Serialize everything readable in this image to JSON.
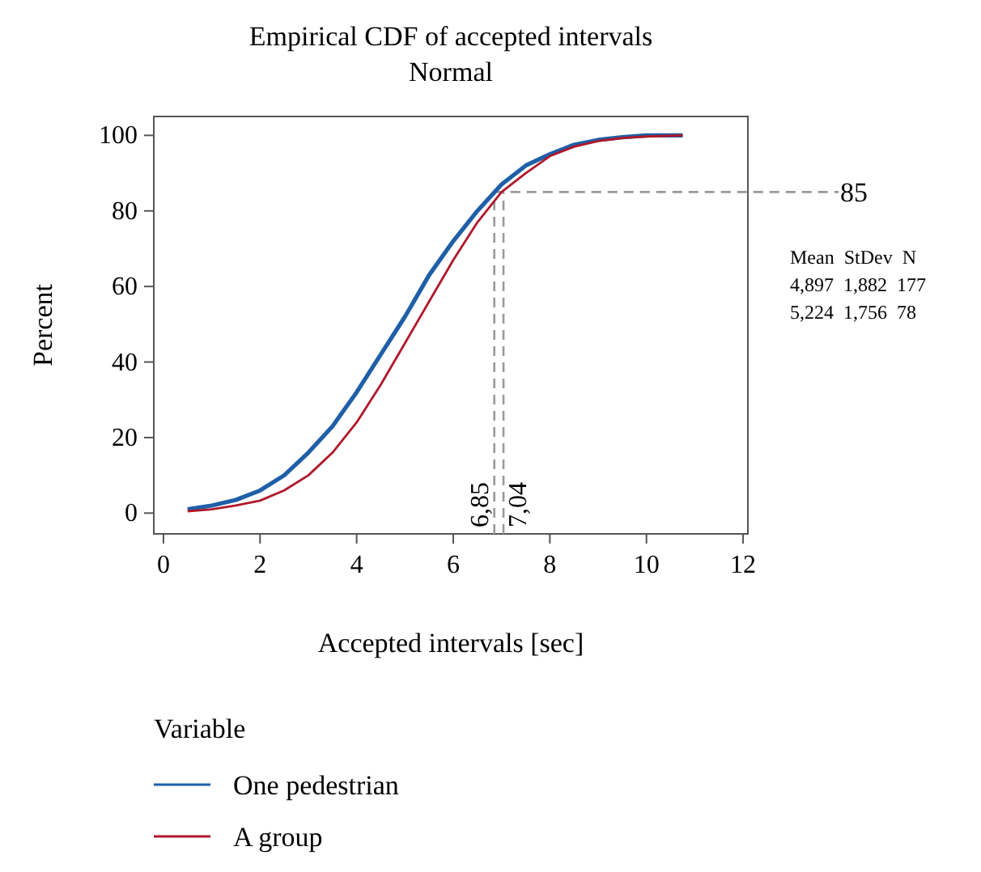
{
  "chart_data": {
    "type": "line",
    "title": "Empirical CDF of accepted intervals",
    "subtitle": "Normal",
    "xlabel": "Accepted intervals [sec]",
    "ylabel": "Percent",
    "legend_title": "Variable",
    "legend": "bottom",
    "grid": false,
    "line_style": "solid",
    "marker": "none",
    "x": [
      0.5,
      1,
      1.5,
      2,
      2.5,
      3,
      3.5,
      4,
      4.5,
      5,
      5.5,
      6,
      6.5,
      7,
      7.5,
      8,
      8.5,
      9,
      9.5,
      10,
      10.75
    ],
    "series": [
      {
        "name": "One pedestrian",
        "color": "#1f5fa8",
        "values": [
          1,
          2,
          3.5,
          6,
          10,
          16,
          23,
          32,
          42,
          52,
          63,
          72,
          80,
          87,
          92,
          95,
          97.5,
          98.8,
          99.5,
          100,
          100
        ]
      },
      {
        "name": "A group",
        "color": "#b0182a",
        "values": [
          0.5,
          1,
          2,
          3.3,
          6,
          10,
          16,
          24,
          34,
          45,
          56,
          67,
          77,
          85,
          90,
          94.5,
          97,
          98.5,
          99.3,
          99.7,
          100
        ]
      }
    ],
    "xlim": [
      -0.2,
      12.1
    ],
    "ylim": [
      -5.5,
      105
    ],
    "xticks": [
      0,
      2,
      4,
      6,
      8,
      10,
      12
    ],
    "yticks": [
      0,
      20,
      40,
      60,
      80,
      100
    ],
    "ref_lines": [
      {
        "axis": "y",
        "value": 85,
        "label": "85",
        "color": "#999999",
        "line_style": "dashed"
      },
      {
        "axis": "x",
        "value": 6.85,
        "label": "6,85",
        "color": "#999999",
        "line_style": "dashed"
      },
      {
        "axis": "x",
        "value": 7.04,
        "label": "7,04",
        "color": "#999999",
        "line_style": "dashed"
      }
    ],
    "annotations": [
      "Mean  StDev  N",
      "4,897  1,882  177",
      "5,224  1,756  78"
    ]
  }
}
